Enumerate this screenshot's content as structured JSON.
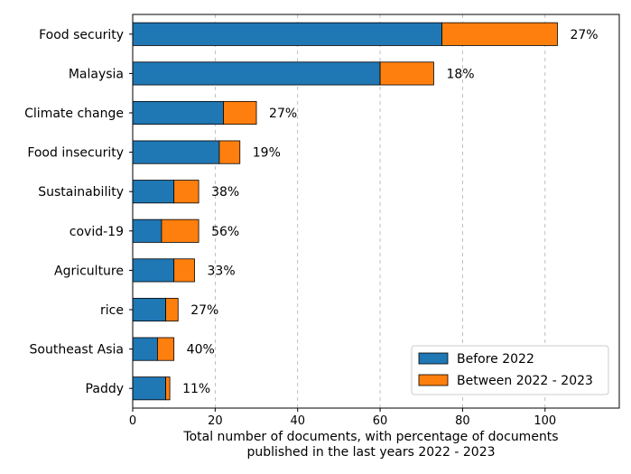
{
  "chart_data": {
    "type": "bar",
    "orientation": "horizontal",
    "stacked": true,
    "categories": [
      "Food security",
      "Malaysia",
      "Climate change",
      "Food insecurity",
      "Sustainability",
      "covid-19",
      "Agriculture",
      "rice",
      "Southeast Asia",
      "Paddy"
    ],
    "series": [
      {
        "name": "Before 2022",
        "color": "#1f77b4",
        "values": [
          75,
          60,
          22,
          21,
          10,
          7,
          10,
          8,
          6,
          8
        ]
      },
      {
        "name": "Between 2022 - 2023",
        "color": "#ff7f0e",
        "values": [
          28,
          13,
          8,
          5,
          6,
          9,
          5,
          3,
          4,
          1
        ]
      }
    ],
    "percent_labels": [
      "27%",
      "18%",
      "27%",
      "19%",
      "38%",
      "56%",
      "33%",
      "27%",
      "40%",
      "11%"
    ],
    "xlabel_lines": [
      "Total number of documents, with percentage of documents",
      "published in the last years 2022 - 2023"
    ],
    "xticks": [
      0,
      20,
      40,
      60,
      80,
      100
    ],
    "xtick_labels": [
      "0",
      "20",
      "40",
      "60",
      "80",
      "100"
    ],
    "xlim": [
      0,
      118
    ],
    "grid": "x-dashed",
    "legend_position": "lower-right",
    "title": ""
  }
}
